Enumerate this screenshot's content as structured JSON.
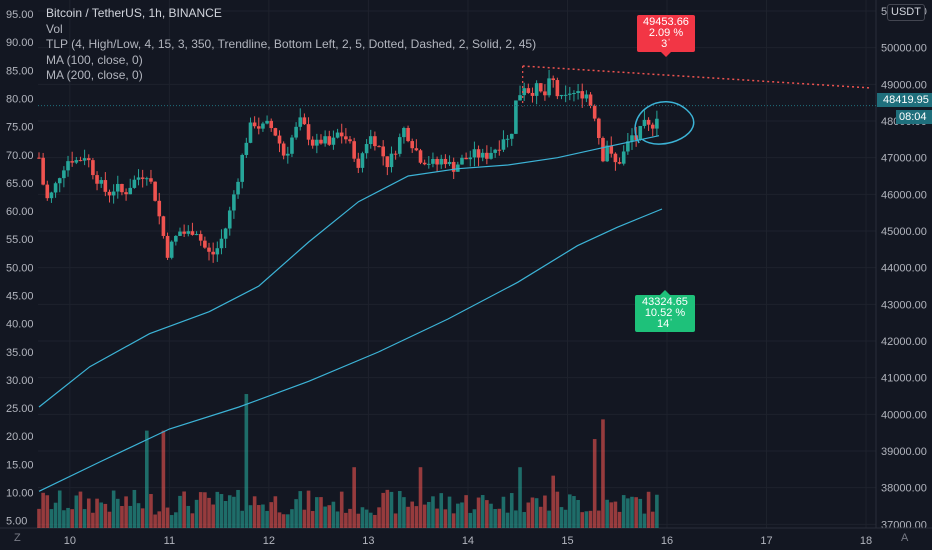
{
  "legend": {
    "title": "Bitcoin / TetherUS, 1h, BINANCE",
    "vol": "Vol",
    "tlp": "TLP (4, High/Low, 4, 15, 3, 350, Trendline, Bottom Left, 2, 5, Dotted, Dashed, 2, Solid, 2, 45)",
    "ma100": "MA (100, close, 0)",
    "ma200": "MA (200, close, 0)"
  },
  "tags": {
    "high": {
      "price": "49453.66",
      "pct": "2.09 %",
      "bars": "3ˈ"
    },
    "low": {
      "price": "43324.65",
      "pct": "10.52 %",
      "bars": "14ˈ"
    }
  },
  "current": {
    "price": "48419.95",
    "countdown": "08:04"
  },
  "currency": "USDT",
  "corner_left": "Z",
  "corner_right": "A",
  "colors": {
    "up": "#26a69a",
    "down": "#ef5350",
    "ma": "#3cb3d6",
    "bg": "#131722",
    "grid": "#1e222d"
  },
  "chart_data": {
    "type": "candlestick",
    "title": "Bitcoin / TetherUS, 1h, BINANCE",
    "x_ticks": [
      "10",
      "11",
      "12",
      "13",
      "14",
      "15",
      "16",
      "17",
      "18"
    ],
    "y_left_ticks": [
      "95.00",
      "90.00",
      "85.00",
      "80.00",
      "75.00",
      "70.00",
      "65.00",
      "60.00",
      "55.00",
      "50.00",
      "45.00",
      "40.00",
      "35.00",
      "30.00",
      "25.00",
      "20.00",
      "15.00",
      "10.00",
      "5.00"
    ],
    "y_right_ticks": [
      "51000.00",
      "50000.00",
      "49000.00",
      "48000.00",
      "47000.00",
      "46000.00",
      "45000.00",
      "44000.00",
      "43000.00",
      "42000.00",
      "41000.00",
      "40000.00",
      "39000.00",
      "38000.00",
      "37000.00"
    ],
    "ylim_price": [
      36900,
      51300
    ],
    "ylim_left": [
      3.7,
      97.5
    ],
    "xlim_days": [
      9.68,
      18.1
    ],
    "current_price": 48419.95,
    "trendline": {
      "from": [
        14.55,
        49500
      ],
      "to": [
        18.05,
        48900
      ]
    },
    "close_path": [
      [
        9.69,
        47000
      ],
      [
        9.73,
        46300
      ],
      [
        9.78,
        45800
      ],
      [
        9.85,
        46200
      ],
      [
        9.92,
        46700
      ],
      [
        10.0,
        47000
      ],
      [
        10.08,
        46900
      ],
      [
        10.16,
        47100
      ],
      [
        10.22,
        46700
      ],
      [
        10.3,
        46300
      ],
      [
        10.38,
        46000
      ],
      [
        10.46,
        46200
      ],
      [
        10.54,
        46000
      ],
      [
        10.62,
        46300
      ],
      [
        10.7,
        46500
      ],
      [
        10.78,
        46600
      ],
      [
        10.86,
        45900
      ],
      [
        10.92,
        45100
      ],
      [
        10.98,
        44400
      ],
      [
        11.04,
        44700
      ],
      [
        11.1,
        45000
      ],
      [
        11.18,
        44900
      ],
      [
        11.26,
        45100
      ],
      [
        11.34,
        44600
      ],
      [
        11.42,
        44300
      ],
      [
        11.5,
        44600
      ],
      [
        11.58,
        45200
      ],
      [
        11.64,
        45900
      ],
      [
        11.7,
        46600
      ],
      [
        11.76,
        47400
      ],
      [
        11.84,
        48000
      ],
      [
        11.92,
        47800
      ],
      [
        12.0,
        47900
      ],
      [
        12.08,
        47600
      ],
      [
        12.16,
        47000
      ],
      [
        12.24,
        47600
      ],
      [
        12.32,
        48000
      ],
      [
        12.38,
        47700
      ],
      [
        12.46,
        47300
      ],
      [
        12.54,
        47500
      ],
      [
        12.62,
        47300
      ],
      [
        12.7,
        47700
      ],
      [
        12.78,
        47500
      ],
      [
        12.86,
        47100
      ],
      [
        12.9,
        46600
      ],
      [
        12.96,
        47400
      ],
      [
        13.04,
        47600
      ],
      [
        13.12,
        47200
      ],
      [
        13.2,
        46800
      ],
      [
        13.28,
        47300
      ],
      [
        13.36,
        47800
      ],
      [
        13.44,
        47400
      ],
      [
        13.52,
        47000
      ],
      [
        13.6,
        46900
      ],
      [
        13.68,
        46800
      ],
      [
        13.76,
        47000
      ],
      [
        13.84,
        46700
      ],
      [
        13.92,
        46900
      ],
      [
        14.0,
        47000
      ],
      [
        14.08,
        47100
      ],
      [
        14.16,
        47000
      ],
      [
        14.24,
        47200
      ],
      [
        14.3,
        47300
      ],
      [
        14.36,
        47600
      ],
      [
        14.42,
        47400
      ],
      [
        14.48,
        48500
      ],
      [
        14.56,
        49000
      ],
      [
        14.62,
        48800
      ],
      [
        14.7,
        48900
      ],
      [
        14.76,
        48600
      ],
      [
        14.84,
        49200
      ],
      [
        14.9,
        48700
      ],
      [
        14.96,
        48500
      ],
      [
        15.02,
        48800
      ],
      [
        15.1,
        48700
      ],
      [
        15.18,
        48800
      ],
      [
        15.24,
        48400
      ],
      [
        15.3,
        48000
      ],
      [
        15.34,
        46900
      ],
      [
        15.4,
        47400
      ],
      [
        15.46,
        46800
      ],
      [
        15.52,
        46900
      ],
      [
        15.58,
        47200
      ],
      [
        15.64,
        47600
      ],
      [
        15.7,
        47500
      ],
      [
        15.76,
        47900
      ],
      [
        15.82,
        47800
      ],
      [
        15.88,
        48000
      ],
      [
        15.92,
        48400
      ]
    ],
    "ma100": [
      [
        9.69,
        40200
      ],
      [
        10.2,
        41300
      ],
      [
        10.8,
        42200
      ],
      [
        11.4,
        42800
      ],
      [
        11.9,
        43500
      ],
      [
        12.4,
        44700
      ],
      [
        12.9,
        45800
      ],
      [
        13.4,
        46500
      ],
      [
        13.9,
        46700
      ],
      [
        14.4,
        46800
      ],
      [
        14.9,
        47000
      ],
      [
        15.4,
        47300
      ],
      [
        15.92,
        47600
      ]
    ],
    "ma200": [
      [
        9.69,
        37900
      ],
      [
        10.3,
        38700
      ],
      [
        11.0,
        39600
      ],
      [
        11.7,
        40200
      ],
      [
        12.4,
        40900
      ],
      [
        13.1,
        41700
      ],
      [
        13.8,
        42600
      ],
      [
        14.5,
        43600
      ],
      [
        15.1,
        44600
      ],
      [
        15.5,
        45100
      ],
      [
        15.95,
        45600
      ]
    ],
    "volume_spikes": [
      [
        10.78,
        21.0
      ],
      [
        10.92,
        21.0
      ],
      [
        11.78,
        27.5
      ],
      [
        12.86,
        14.5
      ],
      [
        13.52,
        14.5
      ],
      [
        14.52,
        14.5
      ],
      [
        14.84,
        13.0
      ],
      [
        15.34,
        23.0
      ],
      [
        15.28,
        19.5
      ]
    ]
  }
}
